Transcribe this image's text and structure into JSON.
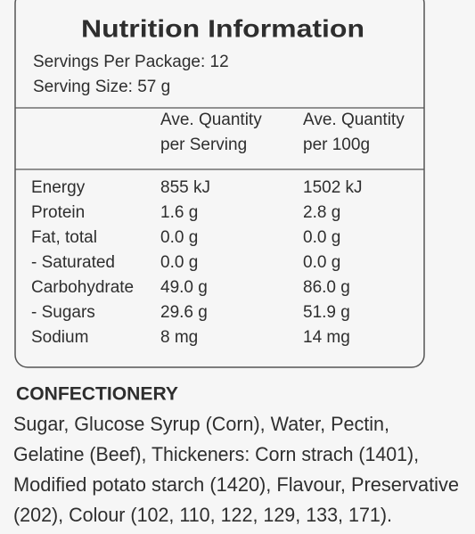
{
  "title": "Nutrition Information",
  "servings_per_package": "Servings Per Package: 12",
  "serving_size": "Serving Size: 57 g",
  "table": {
    "header": [
      [
        "Ave. Quantity",
        "per Serving"
      ],
      [
        "Ave. Quantity",
        "per 100g"
      ]
    ],
    "rows": [
      [
        "Energy",
        "855 kJ",
        "1502 kJ"
      ],
      [
        "Protein",
        "1.6 g",
        "2.8 g"
      ],
      [
        "Fat, total",
        "0.0 g",
        "0.0 g"
      ],
      [
        "- Saturated",
        "0.0 g",
        "0.0 g"
      ],
      [
        "Carbohydrate",
        "49.0 g",
        "86.0 g"
      ],
      [
        "- Sugars",
        "29.6 g",
        "51.9 g"
      ],
      [
        "Sodium",
        "8 mg",
        "14 mg"
      ]
    ]
  },
  "ingredients": {
    "heading": "CONFECTIONERY",
    "lines": [
      "Sugar, Glucose Syrup (Corn), Water, Pectin,",
      "Gelatine (Beef), Thickeners: Corn strach (1401),",
      "Modified potato starch (1420), Flavour, Preservative",
      "(202), Colour (102, 110, 122, 129, 133, 171)."
    ]
  }
}
